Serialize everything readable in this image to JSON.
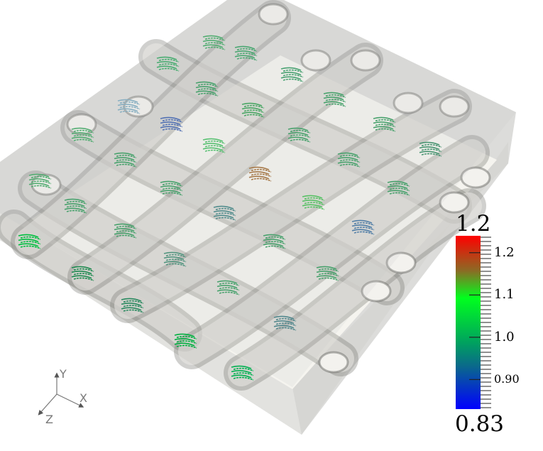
{
  "viewport": {
    "background": "#ffffff",
    "box_color": "#dcdcda",
    "floor_color": "#f5f4ef",
    "tube_color": "#d8d7d2"
  },
  "colorbar": {
    "max_label": "1.2",
    "min_label": "0.83",
    "range": [
      0.83,
      1.24
    ],
    "ticks": [
      {
        "value": 1.2,
        "label": "1.2"
      },
      {
        "value": 1.1,
        "label": "1.1"
      },
      {
        "value": 1.0,
        "label": "1.0"
      },
      {
        "value": 0.9,
        "label": "0.90"
      }
    ],
    "colors": [
      "#ff0000",
      "#8c6a24",
      "#00ff1e",
      "#00a060",
      "#0a6a8a",
      "#0000ff"
    ]
  },
  "orientation_axes": {
    "x": "X",
    "y": "Y",
    "z": "Z"
  }
}
